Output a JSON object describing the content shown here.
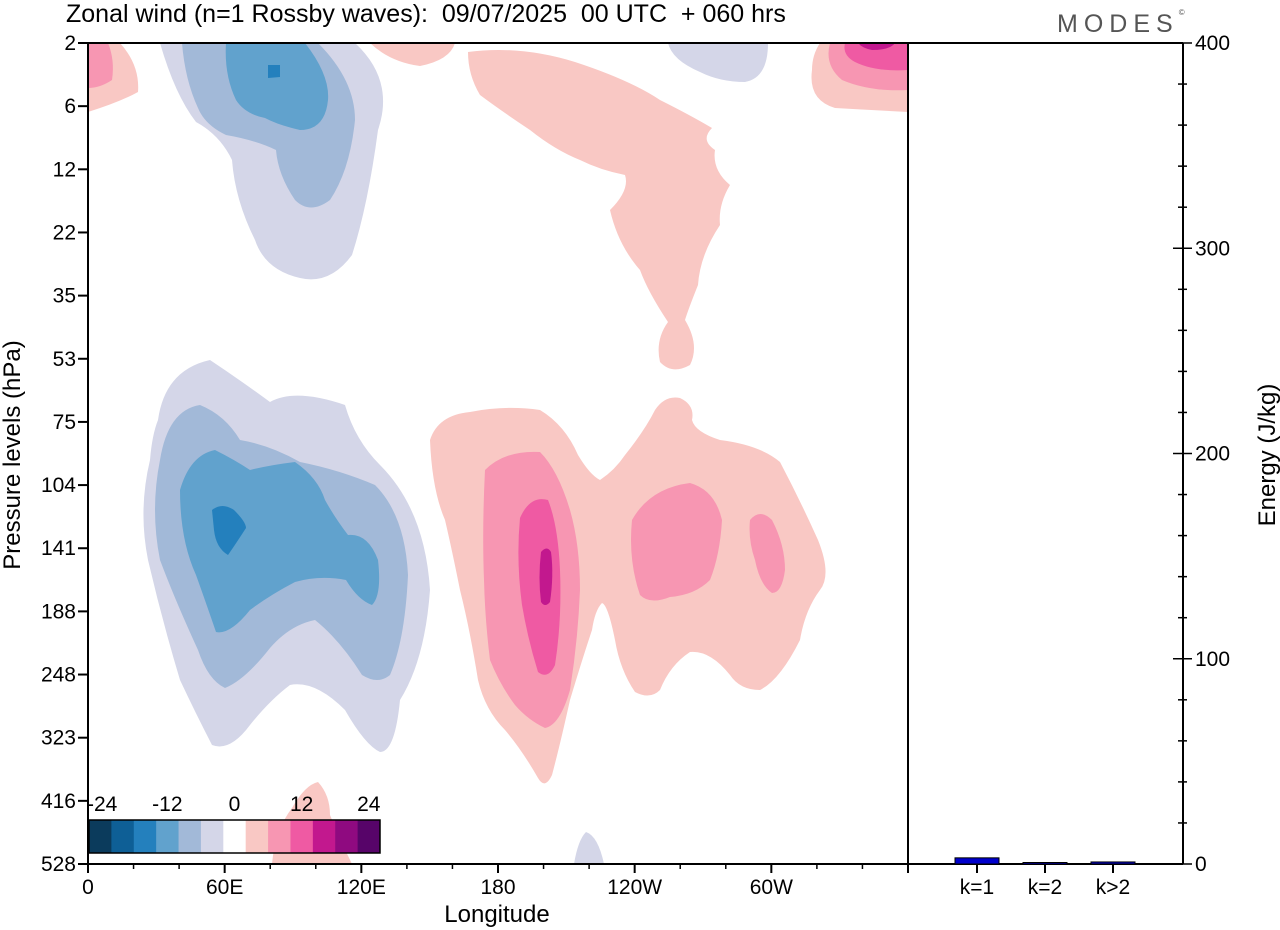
{
  "header": {
    "title": "Zonal wind (n=1 Rossby waves):  09/07/2025  00 UTC  + 060 hrs",
    "brand": "MODES",
    "brand_mark": "©"
  },
  "chart_data": [
    {
      "type": "heatmap",
      "title": "Zonal wind (n=1 Rossby waves):  09/07/2025  00 UTC  + 060 hrs",
      "xlabel": "Longitude",
      "ylabel": "Pressure levels (hPa)",
      "x_tick_labels": [
        "0",
        "60E",
        "120E",
        "180",
        "120W",
        "60W"
      ],
      "y_tick_labels": [
        "2",
        "6",
        "12",
        "22",
        "35",
        "53",
        "75",
        "104",
        "141",
        "188",
        "248",
        "323",
        "416",
        "528"
      ],
      "y_scale": "nonlinear (vertical levels)",
      "colorbar": {
        "tick_labels": [
          "-24",
          "-12",
          "0",
          "12",
          "24"
        ],
        "colors": [
          "#0b3b5c",
          "#0e5f96",
          "#2480bd",
          "#61a2cd",
          "#a2b9d8",
          "#d4d6e8",
          "#ffffff",
          "#f9c8c4",
          "#f796b2",
          "#ef5aa3",
          "#c2188e",
          "#8f0a80",
          "#570469"
        ],
        "placement": "bottom-left"
      },
      "features": [
        {
          "sign": "negative",
          "center_lon": "≈60E",
          "center_level": "≈125 hPa",
          "min": "≈-20"
        },
        {
          "sign": "negative",
          "center_lon": "≈70E",
          "center_level": "≈3 hPa",
          "min": "≈-17"
        },
        {
          "sign": "positive",
          "center_lon": "≈170W",
          "center_level": "≈145 hPa",
          "max": "≈20"
        },
        {
          "sign": "positive",
          "center_lon": "≈145W",
          "center_level": "≈130 hPa",
          "max": "≈10"
        },
        {
          "sign": "positive",
          "center_lon": "≈150W",
          "center_level": "≈10–50 hPa",
          "max": "≈4"
        },
        {
          "sign": "positive",
          "center_lon": "≈20W",
          "center_level": "≈2 hPa",
          "max": "≈20"
        }
      ]
    },
    {
      "type": "bar",
      "ylabel": "Energy (J/kg)",
      "ylim": [
        0,
        400
      ],
      "y_tick_labels": [
        "0",
        "100",
        "200",
        "300",
        "400"
      ],
      "categories": [
        "k=1",
        "k=2",
        "k>2"
      ],
      "values": [
        3,
        0.5,
        1
      ],
      "colors": [
        "#0000cc",
        "#0000cc",
        "#0000cc"
      ]
    }
  ]
}
